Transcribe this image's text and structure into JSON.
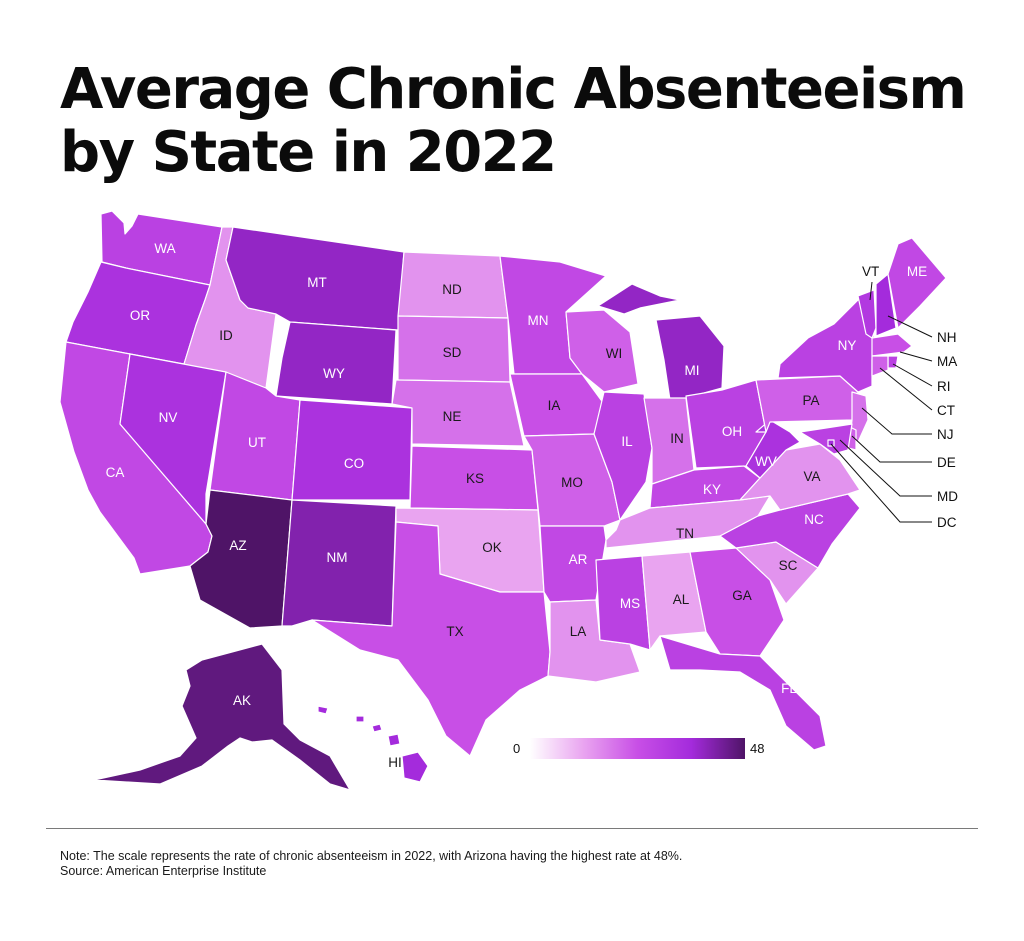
{
  "title": {
    "line1": "Average Chronic Absenteeism",
    "line2": "by State in 2022"
  },
  "note": "Note: The scale represents the rate of chronic absenteeism in 2022, with Arizona having the highest rate at 48%.",
  "source": "Source: American Enterprise Institute",
  "legend": {
    "min_label": "0",
    "max_label": "48",
    "min": 0,
    "max": 48,
    "colors": [
      "#ffffff",
      "#e9a4f0",
      "#c84fe6",
      "#a42bdc",
      "#4f1467"
    ]
  },
  "colors": {
    "background": "#ffffff",
    "border": "#ffffff",
    "divider": "#7a7a7a"
  },
  "states": [
    {
      "code": "WA",
      "level": 0.6
    },
    {
      "code": "OR",
      "level": 0.7
    },
    {
      "code": "CA",
      "level": 0.55
    },
    {
      "code": "ID",
      "level": 0.3
    },
    {
      "code": "NV",
      "level": 0.7
    },
    {
      "code": "MT",
      "level": 0.8
    },
    {
      "code": "WY",
      "level": 0.8
    },
    {
      "code": "UT",
      "level": 0.55
    },
    {
      "code": "AZ",
      "level": 1.0
    },
    {
      "code": "CO",
      "level": 0.7
    },
    {
      "code": "NM",
      "level": 0.85
    },
    {
      "code": "ND",
      "level": 0.3
    },
    {
      "code": "SD",
      "level": 0.4
    },
    {
      "code": "NE",
      "level": 0.4
    },
    {
      "code": "KS",
      "level": 0.5
    },
    {
      "code": "OK",
      "level": 0.25
    },
    {
      "code": "TX",
      "level": 0.5
    },
    {
      "code": "MN",
      "level": 0.55
    },
    {
      "code": "IA",
      "level": 0.5
    },
    {
      "code": "MO",
      "level": 0.45
    },
    {
      "code": "AR",
      "level": 0.55
    },
    {
      "code": "LA",
      "level": 0.3
    },
    {
      "code": "WI",
      "level": 0.45
    },
    {
      "code": "IL",
      "level": 0.6
    },
    {
      "code": "MI",
      "level": 0.8
    },
    {
      "code": "IN",
      "level": 0.4
    },
    {
      "code": "OH",
      "level": 0.6
    },
    {
      "code": "KY",
      "level": 0.55
    },
    {
      "code": "TN",
      "level": 0.3
    },
    {
      "code": "MS",
      "level": 0.6
    },
    {
      "code": "AL",
      "level": 0.25
    },
    {
      "code": "GA",
      "level": 0.5
    },
    {
      "code": "FL",
      "level": 0.6
    },
    {
      "code": "SC",
      "level": 0.3
    },
    {
      "code": "NC",
      "level": 0.6
    },
    {
      "code": "VA",
      "level": 0.3
    },
    {
      "code": "WV",
      "level": 0.7
    },
    {
      "code": "PA",
      "level": 0.45
    },
    {
      "code": "NY",
      "level": 0.6
    },
    {
      "code": "VT",
      "level": 0.65
    },
    {
      "code": "NH",
      "level": 0.75
    },
    {
      "code": "ME",
      "level": 0.55
    },
    {
      "code": "MA",
      "level": 0.5
    },
    {
      "code": "RI",
      "level": 0.6
    },
    {
      "code": "CT",
      "level": 0.45
    },
    {
      "code": "NJ",
      "level": 0.4
    },
    {
      "code": "DE",
      "level": 0.45
    },
    {
      "code": "MD",
      "level": 0.6
    },
    {
      "code": "DC",
      "level": 0.75
    },
    {
      "code": "AK",
      "level": 0.95
    },
    {
      "code": "HI",
      "level": 0.75
    }
  ]
}
